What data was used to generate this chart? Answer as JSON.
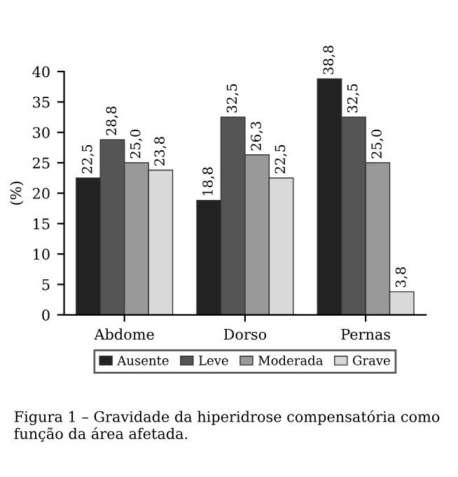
{
  "chart_data": {
    "type": "bar",
    "ylabel": "(%)",
    "categories": [
      "Abdome",
      "Dorso",
      "Pernas"
    ],
    "series": [
      {
        "name": "Ausente",
        "color": "#222222",
        "values": [
          22.5,
          18.8,
          38.8
        ],
        "value_labels": [
          "22,5",
          "18,8",
          "38,8"
        ]
      },
      {
        "name": "Leve",
        "color": "#555555",
        "values": [
          28.8,
          32.5,
          32.5
        ],
        "value_labels": [
          "28,8",
          "32,5",
          "32,5"
        ]
      },
      {
        "name": "Moderada",
        "color": "#999999",
        "values": [
          25.0,
          26.3,
          25.0
        ],
        "value_labels": [
          "25,0",
          "26,3",
          "25,0"
        ]
      },
      {
        "name": "Grave",
        "color": "#d9d9d9",
        "values": [
          23.8,
          22.5,
          3.8
        ],
        "value_labels": [
          "23,8",
          "22,5",
          "3,8"
        ]
      }
    ],
    "ylim": [
      0,
      40
    ],
    "yticks": [
      0,
      5,
      10,
      15,
      20,
      25,
      30,
      35,
      40
    ],
    "grid": false,
    "legend": "bottom",
    "annotations": [
      "Figura 1 – Gravidade da hiperidrose compensatória como função da área afetada."
    ]
  }
}
